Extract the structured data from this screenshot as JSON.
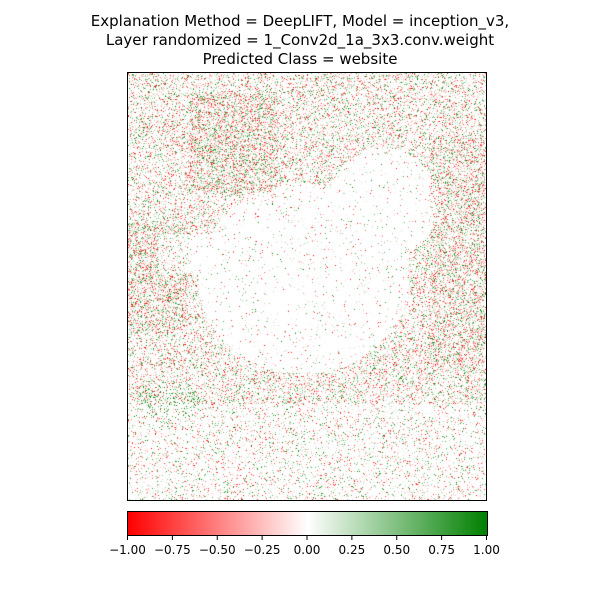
{
  "chart_data": {
    "type": "heatmap",
    "title_lines": [
      "Explanation Method = DeepLIFT, Model = inception_v3,",
      "Layer randomized = 1_Conv2d_1a_3x3.conv.weight",
      "Predicted Class = website"
    ],
    "colormap": {
      "low": "#ff0000",
      "mid": "#ffffff",
      "high": "#008000"
    },
    "colorbar": {
      "range": [
        -1.0,
        1.0
      ],
      "ticks": [
        -1.0,
        -0.75,
        -0.5,
        -0.25,
        0.0,
        0.25,
        0.5,
        0.75,
        1.0
      ],
      "tick_labels": [
        "−1.00",
        "−0.75",
        "−0.50",
        "−0.25",
        "0.00",
        "0.25",
        "0.50",
        "0.75",
        "1.00"
      ]
    },
    "image_axes_ticks": "none",
    "content": "sparse red/green attribution noise around a bird silhouette; mostly near zero"
  }
}
